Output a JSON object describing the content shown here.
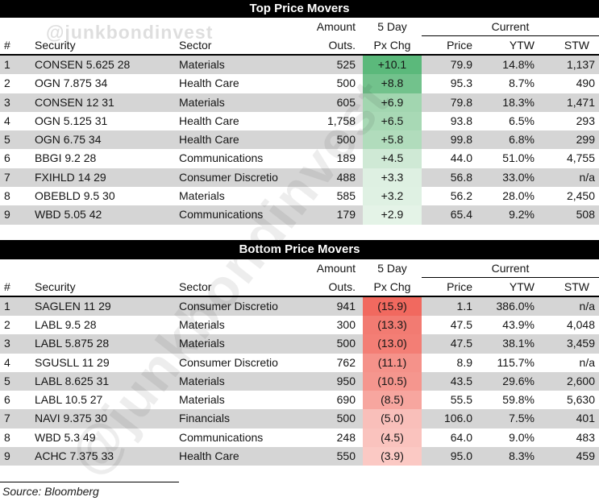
{
  "watermark": {
    "handle": "@junkbondinvest"
  },
  "source_note": "Source: Bloomberg",
  "chart_data": [
    {
      "type": "table",
      "title": "Top Price Movers",
      "headers": {
        "num": "#",
        "security": "Security",
        "sector": "Sector",
        "amount_line1": "Amount",
        "amount_line2": "Outs.",
        "chg_line1": "5 Day",
        "chg_line2": "Px Chg",
        "current_group": "Current",
        "price": "Price",
        "ytw": "YTW",
        "stw": "STW"
      },
      "rows": [
        {
          "num": "1",
          "security": "CONSEN 5.625 28",
          "sector": "Materials",
          "amount": "525",
          "chg": "+10.1",
          "chg_color": "#5bb97b",
          "price": "79.9",
          "ytw": "14.8%",
          "stw": "1,137"
        },
        {
          "num": "2",
          "security": "OGN 7.875 34",
          "sector": "Health Care",
          "amount": "500",
          "chg": "+8.8",
          "chg_color": "#72c28c",
          "price": "95.3",
          "ytw": "8.7%",
          "stw": "490"
        },
        {
          "num": "3",
          "security": "CONSEN 12 31",
          "sector": "Materials",
          "amount": "605",
          "chg": "+6.9",
          "chg_color": "#a2d6b0",
          "price": "79.8",
          "ytw": "18.3%",
          "stw": "1,471"
        },
        {
          "num": "4",
          "security": "OGN 5.125 31",
          "sector": "Health Care",
          "amount": "1,758",
          "chg": "+6.5",
          "chg_color": "#a8d9b5",
          "price": "93.8",
          "ytw": "6.5%",
          "stw": "293"
        },
        {
          "num": "5",
          "security": "OGN 6.75 34",
          "sector": "Health Care",
          "amount": "500",
          "chg": "+5.8",
          "chg_color": "#b1dcbc",
          "price": "99.8",
          "ytw": "6.8%",
          "stw": "299"
        },
        {
          "num": "6",
          "security": "BBGI 9.2 28",
          "sector": "Communications",
          "amount": "189",
          "chg": "+4.5",
          "chg_color": "#cfe9d5",
          "price": "44.0",
          "ytw": "51.0%",
          "stw": "4,755"
        },
        {
          "num": "7",
          "security": "FXIHLD 14 29",
          "sector": "Consumer Discretio",
          "amount": "488",
          "chg": "+3.3",
          "chg_color": "#def0e2",
          "price": "56.8",
          "ytw": "33.0%",
          "stw": "n/a"
        },
        {
          "num": "8",
          "security": "OBEBLD 9.5 30",
          "sector": "Materials",
          "amount": "585",
          "chg": "+3.2",
          "chg_color": "#dff1e3",
          "price": "56.2",
          "ytw": "28.0%",
          "stw": "2,450"
        },
        {
          "num": "9",
          "security": "WBD 5.05 42",
          "sector": "Communications",
          "amount": "179",
          "chg": "+2.9",
          "chg_color": "#e4f3e7",
          "price": "65.4",
          "ytw": "9.2%",
          "stw": "508"
        }
      ]
    },
    {
      "type": "table",
      "title": "Bottom Price Movers",
      "headers": {
        "num": "#",
        "security": "Security",
        "sector": "Sector",
        "amount_line1": "Amount",
        "amount_line2": "Outs.",
        "chg_line1": "5 Day",
        "chg_line2": "Px Chg",
        "current_group": "Current",
        "price": "Price",
        "ytw": "YTW",
        "stw": "STW"
      },
      "rows": [
        {
          "num": "1",
          "security": "SAGLEN 11 29",
          "sector": "Consumer Discretio",
          "amount": "941",
          "chg": "(15.9)",
          "chg_color": "#f1695f",
          "price": "1.1",
          "ytw": "386.0%",
          "stw": "n/a"
        },
        {
          "num": "2",
          "security": "LABL 9.5 28",
          "sector": "Materials",
          "amount": "300",
          "chg": "(13.3)",
          "chg_color": "#f27b72",
          "price": "47.5",
          "ytw": "43.9%",
          "stw": "4,048"
        },
        {
          "num": "3",
          "security": "LABL 5.875 28",
          "sector": "Materials",
          "amount": "500",
          "chg": "(13.0)",
          "chg_color": "#f37e75",
          "price": "47.5",
          "ytw": "38.1%",
          "stw": "3,459"
        },
        {
          "num": "4",
          "security": "SGUSLL 11 29",
          "sector": "Consumer Discretio",
          "amount": "762",
          "chg": "(11.1)",
          "chg_color": "#f5928a",
          "price": "8.9",
          "ytw": "115.7%",
          "stw": "n/a"
        },
        {
          "num": "5",
          "security": "LABL 8.625 31",
          "sector": "Materials",
          "amount": "950",
          "chg": "(10.5)",
          "chg_color": "#f5968e",
          "price": "43.5",
          "ytw": "29.6%",
          "stw": "2,600"
        },
        {
          "num": "6",
          "security": "LABL 10.5 27",
          "sector": "Materials",
          "amount": "690",
          "chg": "(8.5)",
          "chg_color": "#f7a69f",
          "price": "55.5",
          "ytw": "59.8%",
          "stw": "5,630"
        },
        {
          "num": "7",
          "security": "NAVI 9.375 30",
          "sector": "Financials",
          "amount": "500",
          "chg": "(5.0)",
          "chg_color": "#f9bfba",
          "price": "106.0",
          "ytw": "7.5%",
          "stw": "401"
        },
        {
          "num": "8",
          "security": "WBD 5.3 49",
          "sector": "Communications",
          "amount": "248",
          "chg": "(4.5)",
          "chg_color": "#fac3be",
          "price": "64.0",
          "ytw": "9.0%",
          "stw": "483"
        },
        {
          "num": "9",
          "security": "ACHC 7.375 33",
          "sector": "Health Care",
          "amount": "550",
          "chg": "(3.9)",
          "chg_color": "#fbc9c4",
          "price": "95.0",
          "ytw": "8.3%",
          "stw": "459"
        }
      ]
    }
  ],
  "colors": {
    "stripe_gray": "#d5d5d5",
    "title_bar": "#000000",
    "positive_max": "#5bb97b",
    "negative_max": "#f1695f"
  }
}
